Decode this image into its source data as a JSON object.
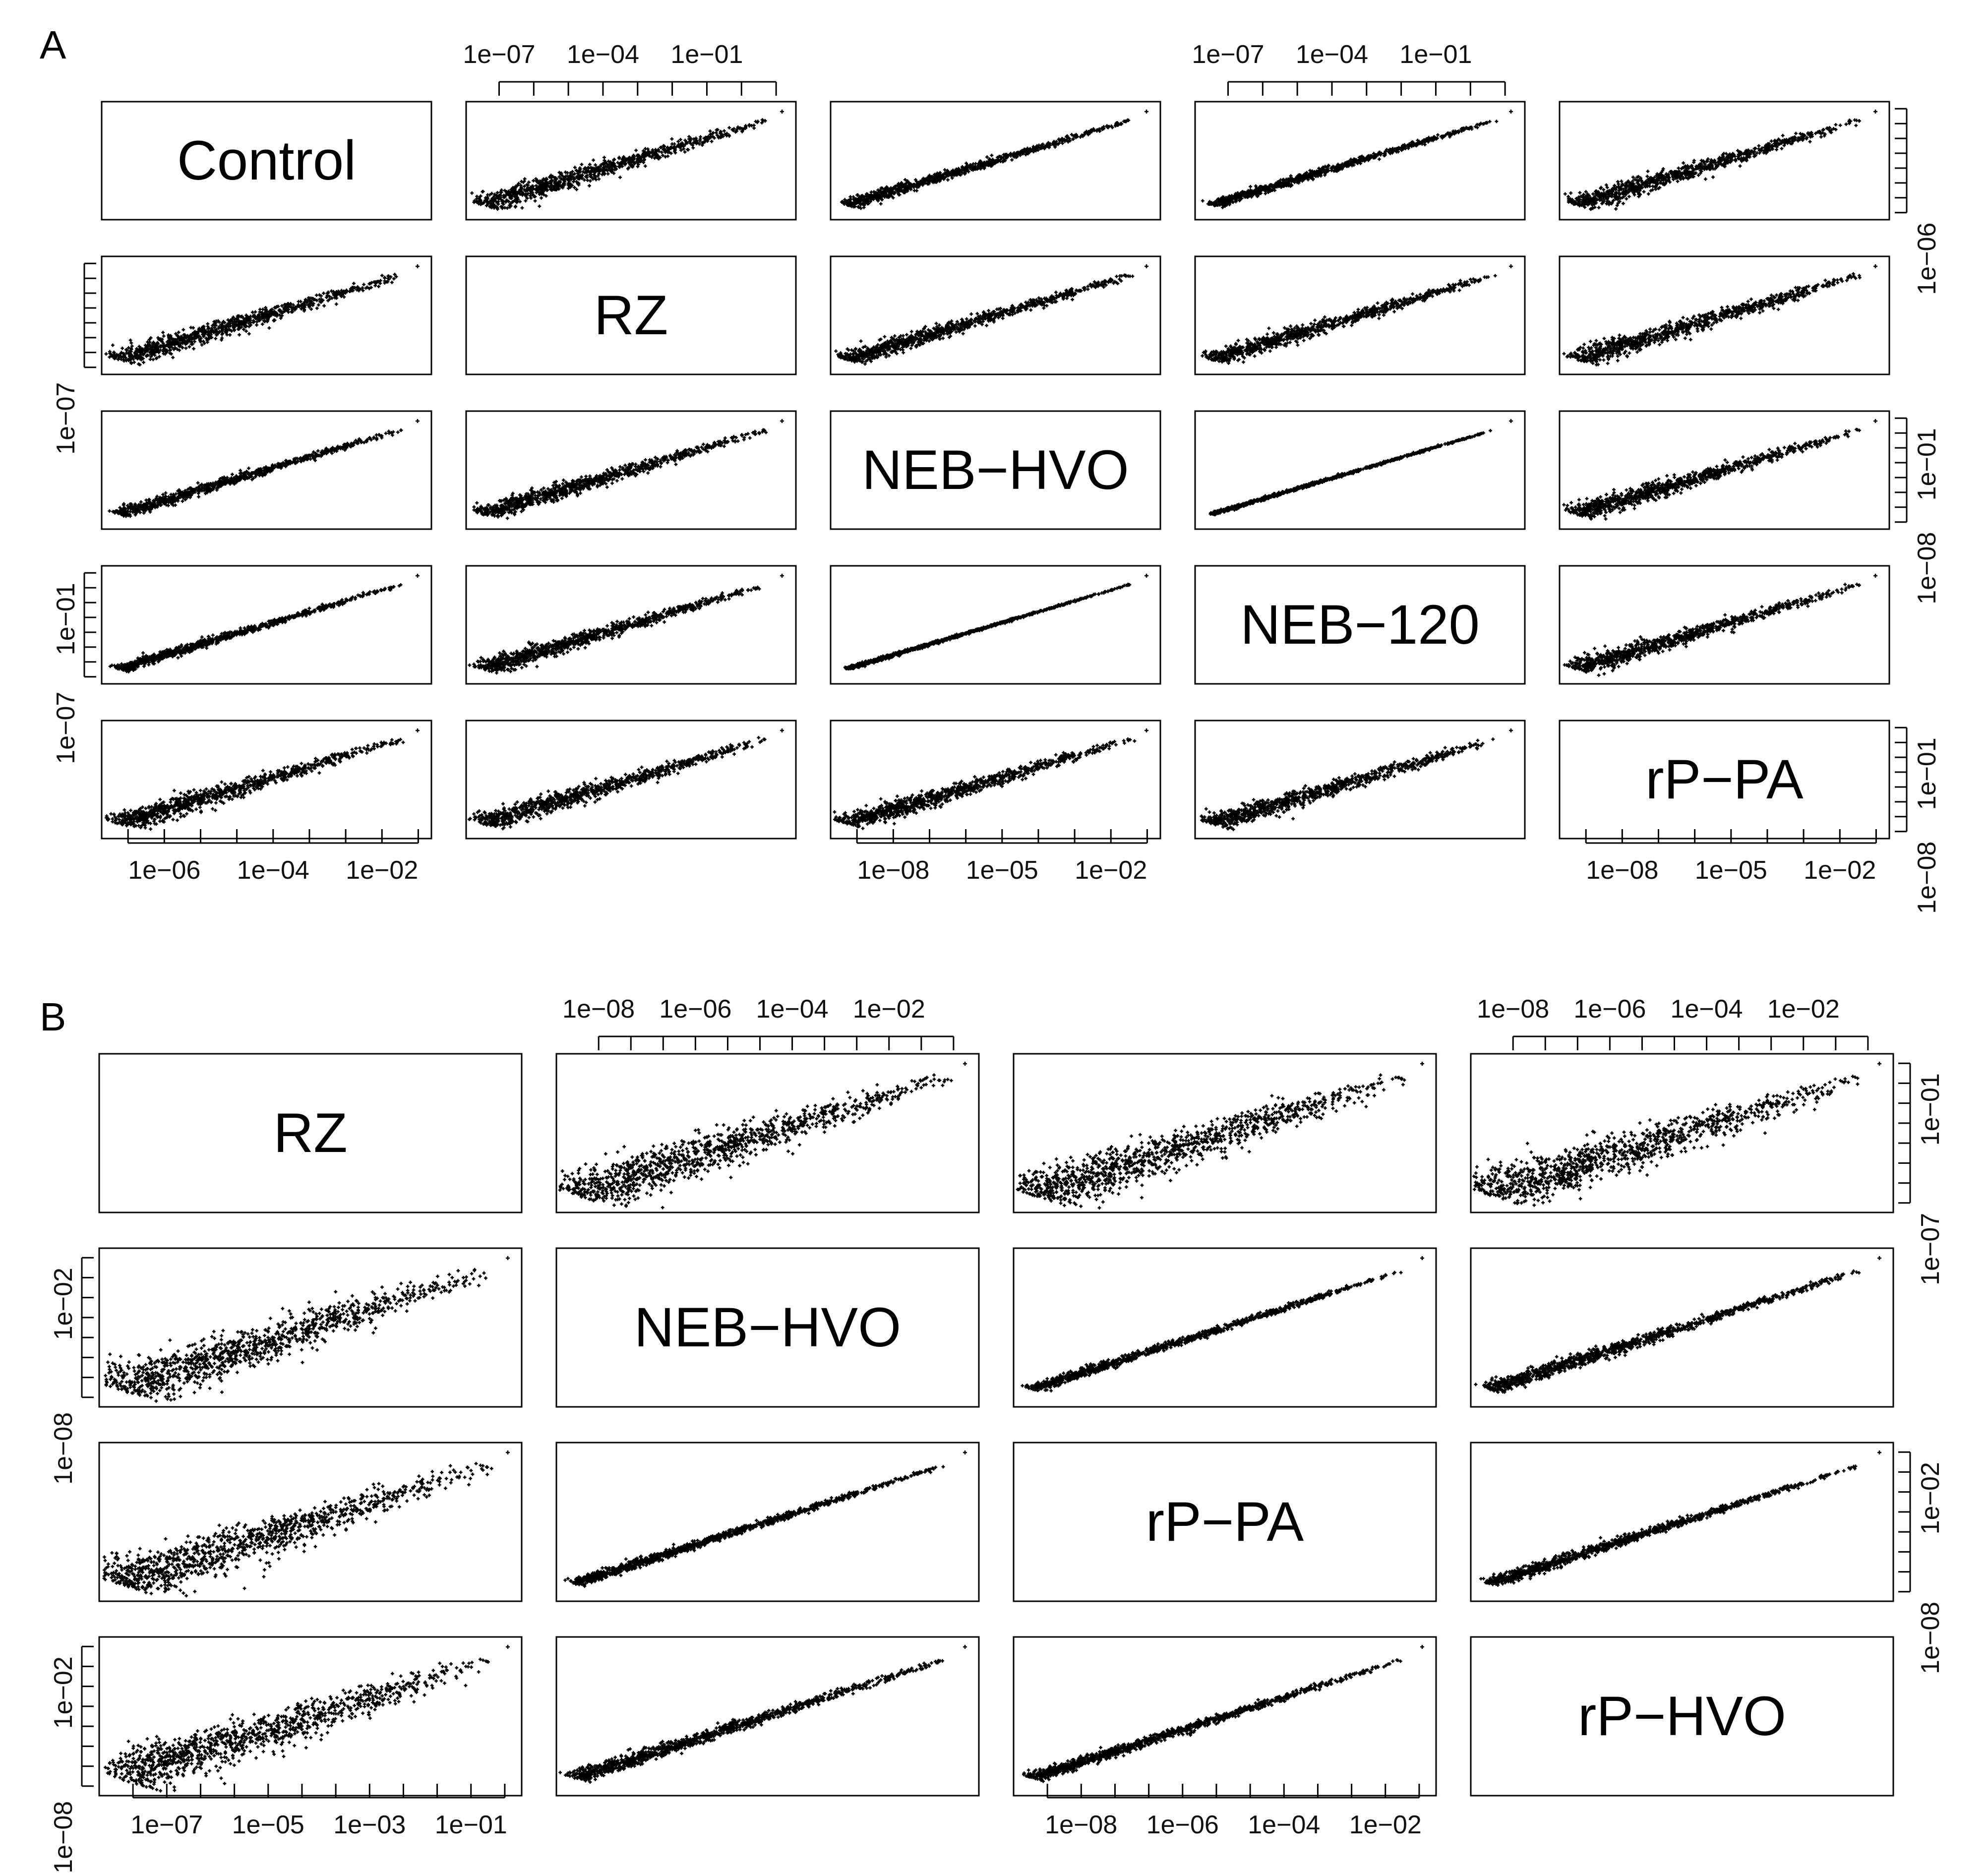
{
  "figure": {
    "panels": [
      {
        "label": "A",
        "variables": [
          "Control",
          "RZ",
          "NEB−HVO",
          "NEB−120",
          "rP−PA"
        ],
        "axis_labels": {
          "top": [
            {
              "col": 1,
              "ticks": [
                "1e−07",
                "1e−04",
                "1e−01"
              ]
            },
            {
              "col": 3,
              "ticks": [
                "1e−07",
                "1e−04",
                "1e−01"
              ]
            }
          ],
          "bottom": [
            {
              "col": 0,
              "ticks": [
                "1e−06",
                "1e−04",
                "1e−02"
              ]
            },
            {
              "col": 2,
              "ticks": [
                "1e−08",
                "1e−05",
                "1e−02"
              ]
            },
            {
              "col": 4,
              "ticks": [
                "1e−08",
                "1e−05",
                "1e−02"
              ]
            }
          ],
          "left": [
            {
              "row": 1,
              "ticks": [
                "1e−07"
              ]
            },
            {
              "row": 3,
              "ticks": [
                "1e−07",
                "1e−01"
              ]
            }
          ],
          "right": [
            {
              "row": 0,
              "ticks": [
                "1e−06"
              ]
            },
            {
              "row": 2,
              "ticks": [
                "1e−08",
                "1e−01"
              ]
            },
            {
              "row": 4,
              "ticks": [
                "1e−08",
                "1e−01"
              ]
            }
          ]
        }
      },
      {
        "label": "B",
        "variables": [
          "RZ",
          "NEB−HVO",
          "rP−PA",
          "rP−HVO"
        ],
        "axis_labels": {
          "top": [
            {
              "col": 1,
              "ticks": [
                "1e−08",
                "1e−06",
                "1e−04",
                "1e−02"
              ]
            },
            {
              "col": 3,
              "ticks": [
                "1e−08",
                "1e−06",
                "1e−04",
                "1e−02"
              ]
            }
          ],
          "bottom": [
            {
              "col": 0,
              "ticks": [
                "1e−07",
                "1e−05",
                "1e−03",
                "1e−01"
              ]
            },
            {
              "col": 2,
              "ticks": [
                "1e−08",
                "1e−06",
                "1e−04",
                "1e−02"
              ]
            }
          ],
          "left": [
            {
              "row": 1,
              "ticks": [
                "1e−08",
                "1e−02"
              ]
            },
            {
              "row": 3,
              "ticks": [
                "1e−08",
                "1e−02"
              ]
            }
          ],
          "right": [
            {
              "row": 0,
              "ticks": [
                "1e−07",
                "1e−01"
              ]
            },
            {
              "row": 2,
              "ticks": [
                "1e−08",
                "1e−02"
              ]
            }
          ]
        }
      }
    ]
  },
  "chart_data": [
    {
      "type": "scatter",
      "title": "A",
      "subtype": "pairs (scatterplot matrix)",
      "variables": [
        "Control",
        "RZ",
        "NEB−HVO",
        "NEB−120",
        "rP−PA"
      ],
      "scale": "log10",
      "points_per_pair": 900,
      "correlation_spread": [
        [
          0,
          0.36,
          0.2,
          0.16,
          0.36
        ],
        [
          0.36,
          0,
          0.3,
          0.3,
          0.36
        ],
        [
          0.2,
          0.3,
          0,
          0.06,
          0.34
        ],
        [
          0.16,
          0.3,
          0.06,
          0,
          0.34
        ],
        [
          0.36,
          0.36,
          0.34,
          0.34,
          0
        ]
      ],
      "xlim": [
        -8,
        -1
      ],
      "ylim": [
        -8,
        -1
      ]
    },
    {
      "type": "scatter",
      "title": "B",
      "subtype": "pairs (scatterplot matrix)",
      "variables": [
        "RZ",
        "NEB−HVO",
        "rP−PA",
        "rP−HVO"
      ],
      "scale": "log10",
      "points_per_pair": 1100,
      "correlation_spread": [
        [
          0,
          0.62,
          0.62,
          0.62
        ],
        [
          0.62,
          0,
          0.12,
          0.18
        ],
        [
          0.62,
          0.12,
          0,
          0.14
        ],
        [
          0.62,
          0.18,
          0.14,
          0
        ]
      ],
      "xlim": [
        -9,
        -1
      ],
      "ylim": [
        -9,
        -1
      ]
    }
  ]
}
